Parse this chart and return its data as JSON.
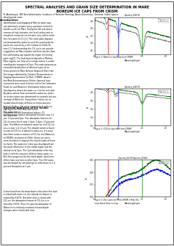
{
  "title": "SPECTRAL ANALYSES AND GRAIN SIZE DETERMINATION IN MARE\nBOREUM ICE CAPS FROM CRISM",
  "author_line": "R. Aishwarya, IEE Geo-Informatics, Institute of Remote Sensing, Anna University, Chennai, India (space-\nwhiz@gmail.com)",
  "section1_title": "Introduction",
  "intro_text": "Identification and mapping of Martian polar caps\ncan potentially answer many questions related to\nclimate cycles on Mars. During the fall and winter\nseasons at high latitudes, the local surface and at-\nmospheric temperatures become very cold to reach\nthe frost point of CO₂ [1]. The north polar deposits\nare dominated by water-ice and the south polar de-\nposits are covered by a thin Carbon-Di-Oxide Ve-\nneer [1]. Understanding the CO₂ cycle can provide\nsuggestions on Mars transfer and heat transfer from\nthe sublimating cap toward the region of freezing\npoint cap[2]. The dark layered deposits in Martian\nPolar regions can help us to a large extent in under-\nstanding the transport of Dust. This work presents an\nextended classification of different types of ice\nforms present in Mare Boreum Region of Mars from\nthe images obtained by Compact Reconnaissance\nImaging Spectrometer for Mars (CRISM), aboard\nthe Mars Reconnaissance Orbiter. Spectral mea-\nsurements were used to derive indices for Carbonate-\nOxide Ice and Water-Ice. Normalized Indices were\ndeveloped to detect the water-ice, Co2-Ice and dust.\nAt places where Dust covered the water-ice, water-\nice to dust index was determined to estimate the per-\ncentage of Water-Ice. Using these indices, an ex-\ntended classification of these ice forms was per-\nformed. Further, the water equivalent of polar ice\ncap region on Mars was also found.\nKeywords: CRISM, Normalized Indices, CO₂\nIce, Water-Ice.",
  "section2_title": "Spectral analyses of Ice forms:",
  "section2_text": "The water-ice\nspectra shows distinct absorption features near 1.5\nμm, 1.5μm and 2μm. The absorption features for\nCO₂-Ice were found near 1.4μm, 1.4μm, 1.5μm and\n2μm. The difference between water-ice and CO₂-Ice\noccurs near 1.4-1.5 μm. The doublet which is found\nin case of CO2 Ice is absent in water-ice. It is clear\nthat there exists a mixture of CO₂-Ice and Water-Ice\nin CRISM's resolution of 200m. Hence we are in\nneed of indices to improve the classification of these\nice forms. The water-ice index was developed from\nthe peak reflectance in the visible region and the\nabsorption at 2μm. The 2μm absorption is the key\nfeature which is found in all three forms water ice.\nBut their properties like the band depth, band area\ndiffers from one form to other form. The CO2 index\nwas developed by considering the reflectance at 1.4\nμm and absorption at 2 μm.",
  "section3_text": "It was found from the band depths that when the dust\nis mixed with water-ice, the absorption feature is\nreduced by 8.42%. But when dust is mixed with\nCO₂-ice, the absorption feature of CO₂-Ice is re-\nduced by 0.55%. Thus the spectral absorption of\nWater-Ice is relatively resistant to band depth\nchanges when mixed with dust.",
  "fig1_caption": "Figure 1. Water-Ice spectrum from CRISM.",
  "fig2_caption": "Figure 2. CO2-Ice spectrum from CRISM.",
  "fig3_caption": "Figure 3. Dust spectrum from CRISM in Mare Bo-\nreum North Polar Ice-Cap.",
  "fig1_title": "Spectra_04576",
  "fig2_title": "Spectra_04576",
  "fig3_title": "Spectra_05176 Spectra_05206",
  "bg_color": "#ffffff",
  "text_color": "#000000"
}
